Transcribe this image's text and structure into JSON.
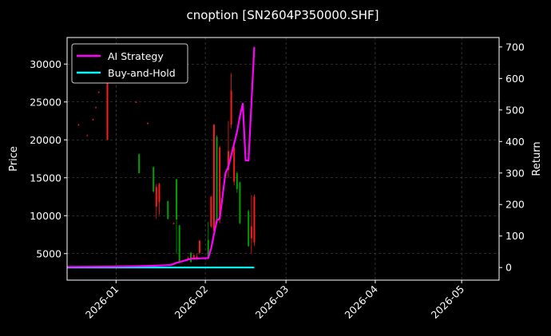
{
  "chart_data": {
    "type": "candlestick+line",
    "title": "cnoption [SN2604P350000.SHF]",
    "ylabel": "Price",
    "y2label": "Return",
    "grid": true,
    "legend_placement": "top-left",
    "x_range": [
      "2025-12-15",
      "2026-05-14"
    ],
    "x_ticks": [
      "2026-01",
      "2026-02",
      "2026-03",
      "2026-04",
      "2026-05"
    ],
    "ylim": [
      1500,
      33500
    ],
    "y_ticks": [
      5000,
      10000,
      15000,
      20000,
      25000,
      30000
    ],
    "y2lim": [
      -40,
      730
    ],
    "y2_ticks": [
      0,
      100,
      200,
      300,
      400,
      500,
      600,
      700
    ],
    "colors": {
      "up": "#00a000",
      "down": "#ff1a1a",
      "ai": "#ff00ff",
      "bh": "#00ffff",
      "background": "#000000",
      "grid": "#555555"
    },
    "candles": [
      {
        "date": "2025-12-19",
        "open": 22000,
        "high": 22100,
        "low": 21900,
        "close": 21950
      },
      {
        "date": "2025-12-22",
        "open": 20600,
        "high": 20700,
        "low": 20500,
        "close": 20550
      },
      {
        "date": "2025-12-24",
        "open": 22700,
        "high": 22800,
        "low": 22600,
        "close": 22650
      },
      {
        "date": "2025-12-25",
        "open": 24300,
        "high": 24400,
        "low": 24200,
        "close": 24250
      },
      {
        "date": "2025-12-26",
        "open": 26300,
        "high": 26400,
        "low": 26200,
        "close": 26250
      },
      {
        "date": "2025-12-29",
        "open": 29000,
        "high": 29000,
        "low": 20000,
        "close": 20000
      },
      {
        "date": "2026-01-08",
        "open": 25000,
        "high": 25100,
        "low": 24900,
        "close": 24950
      },
      {
        "date": "2026-01-09",
        "open": 15600,
        "high": 18200,
        "low": 15600,
        "close": 18100
      },
      {
        "date": "2026-01-12",
        "open": 22200,
        "high": 22300,
        "low": 22100,
        "close": 22150
      },
      {
        "date": "2026-01-14",
        "open": 13200,
        "high": 16500,
        "low": 13000,
        "close": 16400
      },
      {
        "date": "2026-01-15",
        "open": 13800,
        "high": 14200,
        "low": 9600,
        "close": 11200
      },
      {
        "date": "2026-01-16",
        "open": 14200,
        "high": 14300,
        "low": 10100,
        "close": 11800
      },
      {
        "date": "2026-01-19",
        "open": 9600,
        "high": 12000,
        "low": 9500,
        "close": 11900
      },
      {
        "date": "2026-01-21",
        "open": 9000,
        "high": 9100,
        "low": 8900,
        "close": 8950
      },
      {
        "date": "2026-01-22",
        "open": 9500,
        "high": 14900,
        "low": 5000,
        "close": 14800
      },
      {
        "date": "2026-01-23",
        "open": 3800,
        "high": 8800,
        "low": 3700,
        "close": 8700
      },
      {
        "date": "2026-01-26",
        "open": 4400,
        "high": 4600,
        "low": 4200,
        "close": 4300
      },
      {
        "date": "2026-01-27",
        "open": 3900,
        "high": 5200,
        "low": 3800,
        "close": 5100
      },
      {
        "date": "2026-01-28",
        "open": 4800,
        "high": 4900,
        "low": 4300,
        "close": 4400
      },
      {
        "date": "2026-01-29",
        "open": 4600,
        "high": 5000,
        "low": 4200,
        "close": 4300
      },
      {
        "date": "2026-01-30",
        "open": 6700,
        "high": 6800,
        "low": 4900,
        "close": 5100
      },
      {
        "date": "2026-02-02",
        "open": 4400,
        "high": 9200,
        "low": 4300,
        "close": 6800
      },
      {
        "date": "2026-02-03",
        "open": 12500,
        "high": 12600,
        "low": 8400,
        "close": 8600
      },
      {
        "date": "2026-02-04",
        "open": 22000,
        "high": 22100,
        "low": 7800,
        "close": 8000
      },
      {
        "date": "2026-02-05",
        "open": 9000,
        "high": 20600,
        "low": 8900,
        "close": 20400
      },
      {
        "date": "2026-02-06",
        "open": 19000,
        "high": 19200,
        "low": 9000,
        "close": 9500
      },
      {
        "date": "2026-02-09",
        "open": 18500,
        "high": 22500,
        "low": 15000,
        "close": 16000
      },
      {
        "date": "2026-02-10",
        "open": 26500,
        "high": 28800,
        "low": 21500,
        "close": 22000
      },
      {
        "date": "2026-02-11",
        "open": 19000,
        "high": 19200,
        "low": 14000,
        "close": 14500
      },
      {
        "date": "2026-02-12",
        "open": 13500,
        "high": 15800,
        "low": 13000,
        "close": 15600
      },
      {
        "date": "2026-02-13",
        "open": 9000,
        "high": 14500,
        "low": 8900,
        "close": 14400
      },
      {
        "date": "2026-02-16",
        "open": 6000,
        "high": 10800,
        "low": 5900,
        "close": 10600
      },
      {
        "date": "2026-02-17",
        "open": 8600,
        "high": 12700,
        "low": 5000,
        "close": 7000
      },
      {
        "date": "2026-02-18",
        "open": 12500,
        "high": 12800,
        "low": 6000,
        "close": 6500
      }
    ],
    "series": [
      {
        "name": "AI Strategy",
        "x": [
          "2025-12-15",
          "2026-01-01",
          "2026-01-12",
          "2026-01-20",
          "2026-01-22",
          "2026-01-26",
          "2026-01-27",
          "2026-02-02",
          "2026-02-03",
          "2026-02-05",
          "2026-02-06",
          "2026-02-08",
          "2026-02-09",
          "2026-02-12",
          "2026-02-13",
          "2026-02-14",
          "2026-02-15",
          "2026-02-16",
          "2026-02-18"
        ],
        "y": [
          2,
          3,
          5,
          8,
          15,
          25,
          28,
          30,
          60,
          150,
          155,
          300,
          320,
          430,
          480,
          520,
          340,
          340,
          700
        ]
      },
      {
        "name": "Buy-and-Hold",
        "x": [
          "2025-12-15",
          "2026-02-18"
        ],
        "y": [
          0,
          0
        ]
      }
    ]
  }
}
